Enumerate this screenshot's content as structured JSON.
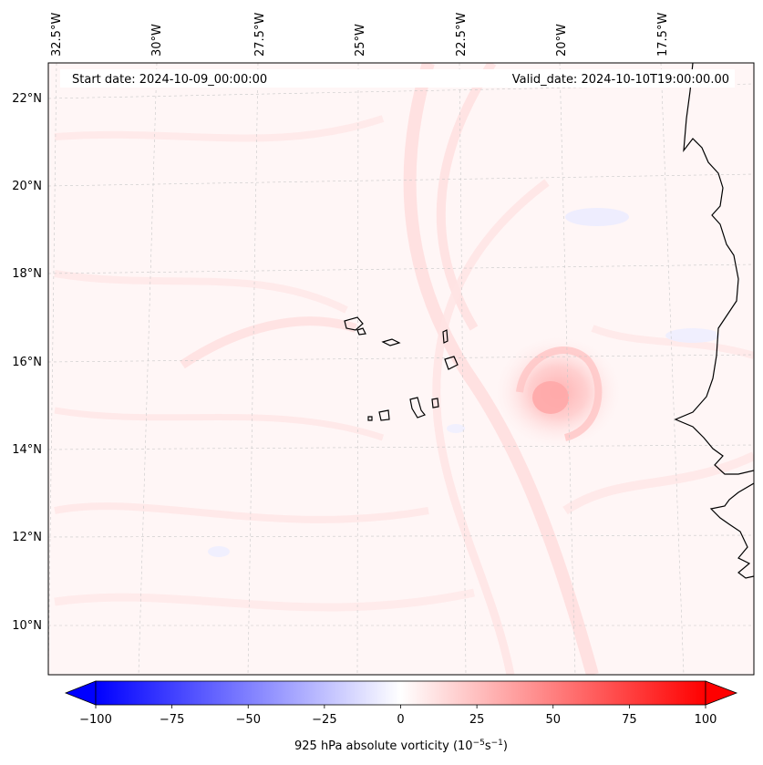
{
  "header": {
    "start_date": "Start date: 2024-10-09_00:00:00",
    "valid_date": "Valid_date: 2024-10-10T19:00:00.00"
  },
  "map": {
    "lon_labels": [
      "32.5°W",
      "30°W",
      "27.5°W",
      "25°W",
      "22.5°W",
      "20°W",
      "17.5°W"
    ],
    "lat_labels": [
      "22°N",
      "20°N",
      "18°N",
      "16°N",
      "14°N",
      "12°N",
      "10°N"
    ],
    "field": "925 hPa absolute vorticity"
  },
  "colorbar": {
    "label_prefix": "925 hPa absolute vorticity (10",
    "exp1": "−5",
    "label_mid": "s",
    "exp2": "−1",
    "label_suffix": ")",
    "ticks": [
      "−100",
      "−75",
      "−50",
      "−25",
      "0",
      "25",
      "50",
      "75",
      "100"
    ],
    "min": -100,
    "max": 100,
    "colors": {
      "negative": "#0000ff",
      "zero": "#ffffff",
      "positive": "#ff0000"
    }
  }
}
